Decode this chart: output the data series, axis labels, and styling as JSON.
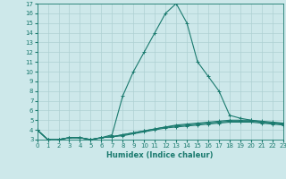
{
  "xlabel": "Humidex (Indice chaleur)",
  "ylabel": "",
  "background_color": "#cde8ea",
  "grid_color": "#aed0d3",
  "line_color": "#1a7a6e",
  "x_values": [
    0,
    1,
    2,
    3,
    4,
    5,
    6,
    7,
    8,
    9,
    10,
    11,
    12,
    13,
    14,
    15,
    16,
    17,
    18,
    19,
    20,
    21,
    22,
    23
  ],
  "series": [
    [
      4.0,
      3.0,
      3.0,
      3.2,
      3.2,
      3.0,
      3.2,
      3.5,
      7.5,
      10.0,
      12.0,
      14.0,
      16.0,
      17.0,
      15.0,
      11.0,
      9.5,
      8.0,
      5.5,
      5.2,
      5.0,
      4.8,
      4.7,
      4.7
    ],
    [
      4.0,
      3.0,
      3.0,
      3.2,
      3.2,
      3.0,
      3.2,
      3.3,
      3.5,
      3.7,
      3.9,
      4.1,
      4.3,
      4.5,
      4.6,
      4.7,
      4.8,
      4.9,
      5.0,
      5.0,
      5.0,
      4.9,
      4.8,
      4.7
    ],
    [
      4.0,
      3.0,
      3.0,
      3.2,
      3.2,
      3.0,
      3.2,
      3.3,
      3.5,
      3.7,
      3.9,
      4.1,
      4.3,
      4.4,
      4.5,
      4.6,
      4.7,
      4.8,
      4.9,
      4.9,
      4.9,
      4.8,
      4.7,
      4.6
    ],
    [
      4.0,
      3.0,
      3.0,
      3.2,
      3.2,
      3.0,
      3.2,
      3.3,
      3.4,
      3.6,
      3.8,
      4.0,
      4.2,
      4.3,
      4.4,
      4.5,
      4.6,
      4.7,
      4.8,
      4.8,
      4.8,
      4.7,
      4.6,
      4.5
    ]
  ],
  "ylim_min": 3,
  "ylim_max": 17,
  "xlim_min": 0,
  "xlim_max": 23,
  "yticks": [
    3,
    4,
    5,
    6,
    7,
    8,
    9,
    10,
    11,
    12,
    13,
    14,
    15,
    16,
    17
  ],
  "xticks": [
    0,
    1,
    2,
    3,
    4,
    5,
    6,
    7,
    8,
    9,
    10,
    11,
    12,
    13,
    14,
    15,
    16,
    17,
    18,
    19,
    20,
    21,
    22,
    23
  ],
  "tick_fontsize": 5.0,
  "xlabel_fontsize": 6.0,
  "linewidth": 0.8,
  "marker": "+",
  "markersize": 2.5,
  "markeredgewidth": 0.7
}
